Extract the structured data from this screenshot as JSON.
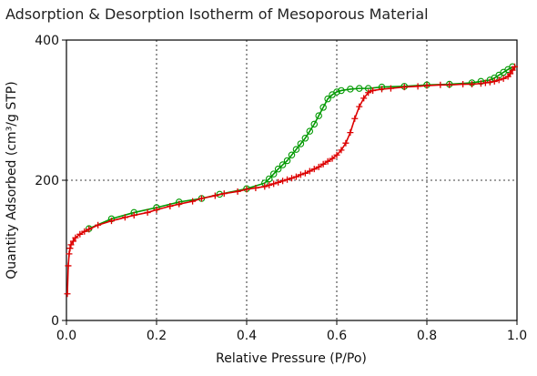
{
  "chart_data": {
    "type": "line",
    "title": "Adsorption & Desorption Isotherm of Mesoporous Material",
    "xlabel": "Relative Pressure (P/Po)",
    "ylabel": "Quantity Adsorbed (cm³/g STP)",
    "xlim": [
      0,
      1
    ],
    "ylim": [
      0,
      400
    ],
    "x_ticks": [
      "0.0",
      "0.2",
      "0.4",
      "0.6",
      "0.8",
      "1.0"
    ],
    "y_ticks": [
      "0",
      "200",
      "400"
    ],
    "grid": "dotted",
    "colors": {
      "desorption": "#009900",
      "adsorption": "#dd0000"
    },
    "series": [
      {
        "marker": "circle",
        "color": "#009900",
        "x": [
          0.99,
          0.98,
          0.97,
          0.96,
          0.95,
          0.94,
          0.92,
          0.9,
          0.85,
          0.8,
          0.75,
          0.7,
          0.67,
          0.65,
          0.63,
          0.61,
          0.6,
          0.59,
          0.58,
          0.57,
          0.56,
          0.55,
          0.54,
          0.53,
          0.52,
          0.51,
          0.5,
          0.49,
          0.48,
          0.47,
          0.46,
          0.45,
          0.44,
          0.4,
          0.34,
          0.3,
          0.25,
          0.2,
          0.15,
          0.1,
          0.05
        ],
        "y": [
          362,
          358,
          354,
          350,
          346,
          343,
          341,
          339,
          337,
          336,
          334,
          333,
          331,
          331,
          330,
          328,
          326,
          322,
          316,
          304,
          292,
          280,
          270,
          260,
          252,
          244,
          236,
          228,
          222,
          216,
          209,
          202,
          196,
          188,
          180,
          174,
          169,
          161,
          154,
          145,
          131
        ]
      },
      {
        "marker": "plus",
        "color": "#dd0000",
        "x": [
          0.002,
          0.004,
          0.006,
          0.008,
          0.01,
          0.015,
          0.02,
          0.03,
          0.04,
          0.05,
          0.07,
          0.1,
          0.13,
          0.15,
          0.18,
          0.2,
          0.23,
          0.25,
          0.28,
          0.3,
          0.33,
          0.35,
          0.38,
          0.4,
          0.42,
          0.44,
          0.45,
          0.46,
          0.47,
          0.48,
          0.49,
          0.5,
          0.51,
          0.52,
          0.53,
          0.54,
          0.55,
          0.56,
          0.57,
          0.58,
          0.59,
          0.6,
          0.61,
          0.62,
          0.63,
          0.64,
          0.65,
          0.66,
          0.67,
          0.68,
          0.7,
          0.72,
          0.75,
          0.78,
          0.8,
          0.83,
          0.85,
          0.88,
          0.9,
          0.92,
          0.93,
          0.94,
          0.95,
          0.96,
          0.97,
          0.98,
          0.985,
          0.99,
          0.995
        ],
        "y": [
          38,
          78,
          95,
          103,
          108,
          113,
          118,
          123,
          127,
          130,
          136,
          142,
          147,
          150,
          154,
          158,
          163,
          166,
          170,
          174,
          178,
          181,
          184,
          187,
          189,
          191,
          193,
          195,
          197,
          199,
          201,
          203,
          205,
          208,
          210,
          213,
          216,
          219,
          223,
          227,
          231,
          236,
          243,
          253,
          268,
          288,
          305,
          317,
          325,
          328,
          330,
          331,
          333,
          334,
          335,
          336,
          336,
          337,
          337,
          338,
          339,
          340,
          341,
          343,
          345,
          348,
          352,
          357,
          362
        ]
      }
    ]
  }
}
